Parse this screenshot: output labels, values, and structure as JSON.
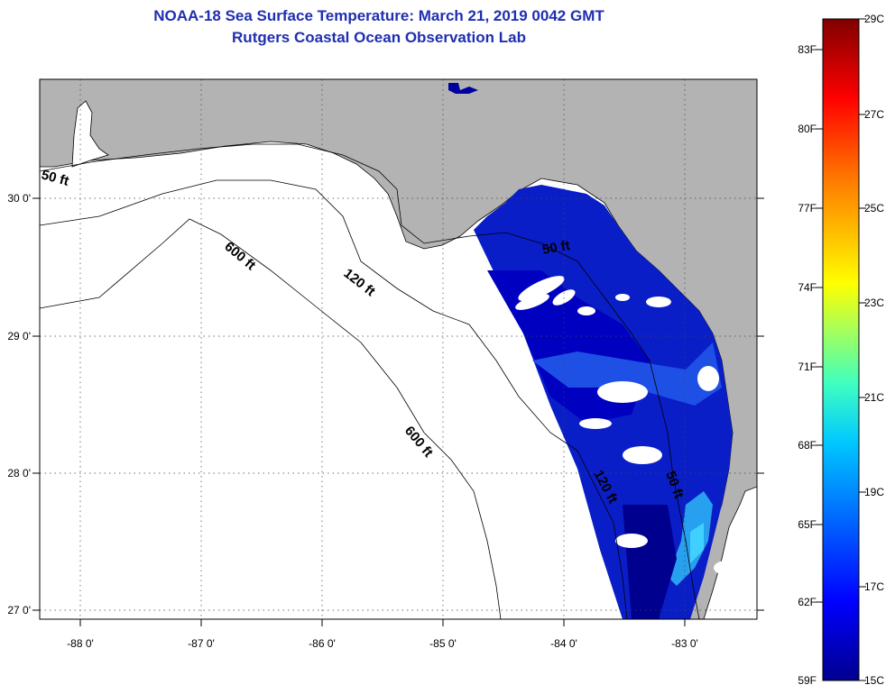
{
  "title": {
    "line1": "NOAA-18 Sea Surface Temperature:  March 21, 2019 0042 GMT",
    "line2": "Rutgers Coastal Ocean Observation Lab"
  },
  "map": {
    "x_ticks": [
      "-88 0'",
      "-87 0'",
      "-86 0'",
      "-85 0'",
      "-84 0'",
      "-83 0'"
    ],
    "y_ticks": [
      "30 0'",
      "29 0'",
      "28 0'",
      "27 0'"
    ],
    "contour_labels": [
      "50 ft",
      "50 ft",
      "50 ft",
      "120 ft",
      "120 ft",
      "600 ft",
      "600 ft"
    ],
    "colors": {
      "land": "#b3b3b3",
      "water_nodata": "#ffffff",
      "contour": "#000000"
    }
  },
  "colorbar": {
    "fahrenheit": [
      "83F",
      "80F",
      "77F",
      "74F",
      "71F",
      "68F",
      "65F",
      "62F",
      "59F"
    ],
    "celsius": [
      "29C",
      "27C",
      "25C",
      "23C",
      "21C",
      "19C",
      "17C",
      "15C"
    ],
    "colors": [
      "#00008f",
      "#0000ff",
      "#0080ff",
      "#00ffff",
      "#80ff80",
      "#ffff00",
      "#ff8000",
      "#ff0000",
      "#800000"
    ]
  }
}
